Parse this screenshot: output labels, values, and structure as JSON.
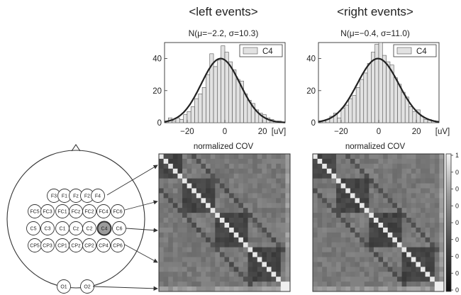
{
  "figure": {
    "left_title": "<left events>",
    "right_title": "<right events>",
    "left_subtitle": "N(μ=−2.2, σ=10.3)",
    "right_subtitle": "N(μ=−0.4, σ=11.0)",
    "cov_label": "normalized COV",
    "legend_label": "C4",
    "unit_label": "[uV]",
    "colorbar_ticks": [
      "1",
      "0",
      "0",
      "0",
      "0",
      "0",
      "0",
      "0",
      "0"
    ]
  },
  "electrodes": [
    {
      "label": "F3"
    },
    {
      "label": "F1"
    },
    {
      "label": "Fz"
    },
    {
      "label": "F2"
    },
    {
      "label": "F4"
    },
    {
      "label": "FC5"
    },
    {
      "label": "FC3"
    },
    {
      "label": "FC1"
    },
    {
      "label": "FCz"
    },
    {
      "label": "FC2"
    },
    {
      "label": "FC4"
    },
    {
      "label": "FC6"
    },
    {
      "label": "C5"
    },
    {
      "label": "C3"
    },
    {
      "label": "C1"
    },
    {
      "label": "Cz"
    },
    {
      "label": "C2"
    },
    {
      "label": "C4"
    },
    {
      "label": "C6"
    },
    {
      "label": "CP5"
    },
    {
      "label": "CP3"
    },
    {
      "label": "CP1"
    },
    {
      "label": "CPz"
    },
    {
      "label": "CP2"
    },
    {
      "label": "CP4"
    },
    {
      "label": "CP6"
    },
    {
      "label": "O1"
    },
    {
      "label": "O2"
    }
  ],
  "chart_data": [
    {
      "type": "bar",
      "title": "<left events>",
      "subtitle": "N(μ=−2.2, σ=10.3)",
      "xlabel": "[uV]",
      "ylabel": "",
      "legend": [
        "C4"
      ],
      "xlim": [
        -32,
        32
      ],
      "ylim": [
        0,
        50
      ],
      "xticks": [
        -20,
        0,
        20
      ],
      "yticks": [
        0,
        20,
        40
      ],
      "bin_width": 2,
      "bin_starts": [
        -30,
        -28,
        -26,
        -24,
        -22,
        -20,
        -18,
        -16,
        -14,
        -12,
        -10,
        -8,
        -6,
        -4,
        -2,
        0,
        2,
        4,
        6,
        8,
        10,
        12,
        14,
        16,
        18,
        20,
        22,
        24,
        26,
        28
      ],
      "values": [
        3,
        1,
        3,
        2,
        5,
        7,
        10,
        15,
        18,
        22,
        30,
        43,
        35,
        39,
        48,
        44,
        38,
        33,
        27,
        26,
        18,
        14,
        12,
        8,
        6,
        5,
        3,
        2,
        1,
        1
      ],
      "fit": {
        "mu": -2.2,
        "sigma": 10.3,
        "peak": 40
      }
    },
    {
      "type": "bar",
      "title": "<right events>",
      "subtitle": "N(μ=−0.4, σ=11.0)",
      "xlabel": "[uV]",
      "ylabel": "",
      "legend": [
        "C4"
      ],
      "xlim": [
        -32,
        32
      ],
      "ylim": [
        0,
        50
      ],
      "xticks": [
        -20,
        0,
        20
      ],
      "yticks": [
        0,
        20,
        40
      ],
      "bin_width": 2,
      "bin_starts": [
        -30,
        -28,
        -26,
        -24,
        -22,
        -20,
        -18,
        -16,
        -14,
        -12,
        -10,
        -8,
        -6,
        -4,
        -2,
        0,
        2,
        4,
        6,
        8,
        10,
        12,
        14,
        16,
        18,
        20,
        22,
        24,
        26,
        28
      ],
      "values": [
        1,
        2,
        4,
        6,
        3,
        9,
        11,
        15,
        17,
        22,
        27,
        31,
        37,
        44,
        49,
        50,
        42,
        38,
        36,
        28,
        24,
        19,
        16,
        10,
        7,
        8,
        4,
        2,
        2,
        1
      ],
      "fit": {
        "mu": -0.4,
        "sigma": 11.0,
        "peak": 40
      }
    },
    {
      "type": "heatmap",
      "title": "normalized COV",
      "description_rows": 28,
      "block_boundaries": [
        5,
        12,
        19,
        26
      ],
      "colorbar_range": [
        0,
        1
      ]
    },
    {
      "type": "heatmap",
      "title": "normalized COV",
      "description_rows": 28,
      "block_boundaries": [
        5,
        12,
        19,
        26
      ],
      "colorbar_range": [
        0,
        1
      ]
    }
  ]
}
